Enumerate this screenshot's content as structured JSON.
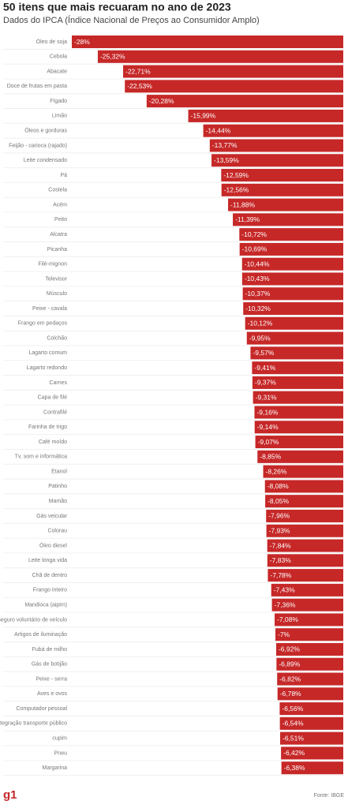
{
  "chart_data": {
    "type": "bar",
    "orientation": "horizontal",
    "title": "50 itens que mais recuaram no ano de 2023",
    "subtitle": "Dados do IPCA (Índice Nacional de Preços ao Consumidor Amplo)",
    "source": "Fonte: IBGE",
    "logo": "g1",
    "color": "#c62828",
    "xlim": [
      -28,
      0
    ],
    "categories": [
      "Óleo de soja",
      "Cebola",
      "Abacate",
      "Doce de frutas em pasta",
      "Fígado",
      "Limão",
      "Óleos e gorduras",
      "Feijão - carioca (rajado)",
      "Leite condensado",
      "Pá",
      "Costela",
      "Acém",
      "Peito",
      "Alcatra",
      "Picanha",
      "Filé-mignon",
      "Televisor",
      "Músculo",
      "Peixe - cavala",
      "Frango em pedaços",
      "Colchão",
      "Lagarto comum",
      "Lagarto redondo",
      "Carnes",
      "Capa de filé",
      "Contrafilé",
      "Farinha de trigo",
      "Café moído",
      "Tv, som e informática",
      "Etanol",
      "Patinho",
      "Mamão",
      "Gás veicular",
      "Colorau",
      "Óleo diesel",
      "Leite longa vida",
      "Chã de dentro",
      "Frango inteiro",
      "Mandioca (aipim)",
      "Seguro voluntário de veículo",
      "Artigos de iluminação",
      "Fubá de milho",
      "Gás de botijão",
      "Peixe - serra",
      "Aves e ovos",
      "Computador pessoal",
      "Integração transporte público",
      "cupim",
      "Pneu",
      "Margarina"
    ],
    "values": [
      -28,
      -25.32,
      -22.71,
      -22.53,
      -20.28,
      -15.99,
      -14.44,
      -13.77,
      -13.59,
      -12.59,
      -12.56,
      -11.88,
      -11.39,
      -10.72,
      -10.69,
      -10.44,
      -10.43,
      -10.37,
      -10.32,
      -10.12,
      -9.95,
      -9.57,
      -9.41,
      -9.37,
      -9.31,
      -9.16,
      -9.14,
      -9.07,
      -8.85,
      -8.26,
      -8.08,
      -8.05,
      -7.96,
      -7.93,
      -7.84,
      -7.83,
      -7.78,
      -7.43,
      -7.36,
      -7.08,
      -7,
      -6.92,
      -6.89,
      -6.82,
      -6.78,
      -6.56,
      -6.54,
      -6.51,
      -6.42,
      -6.38
    ],
    "value_labels": [
      "-28%",
      "-25,32%",
      "-22,71%",
      "-22,53%",
      "-20,28%",
      "-15,99%",
      "-14,44%",
      "-13,77%",
      "-13,59%",
      "-12,59%",
      "-12,56%",
      "-11,88%",
      "-11,39%",
      "-10,72%",
      "-10,69%",
      "-10,44%",
      "-10,43%",
      "-10,37%",
      "-10,32%",
      "-10,12%",
      "-9,95%",
      "-9,57%",
      "-9,41%",
      "-9,37%",
      "-9,31%",
      "-9,16%",
      "-9,14%",
      "-9,07%",
      "-8,85%",
      "-8,26%",
      "-8,08%",
      "-8,05%",
      "-7,96%",
      "-7,93%",
      "-7,84%",
      "-7,83%",
      "-7,78%",
      "-7,43%",
      "-7,36%",
      "-7,08%",
      "-7%",
      "-6,92%",
      "-6,89%",
      "-6,82%",
      "-6,78%",
      "-6,56%",
      "-6,54%",
      "-6,51%",
      "-6,42%",
      "-6,38%"
    ]
  }
}
